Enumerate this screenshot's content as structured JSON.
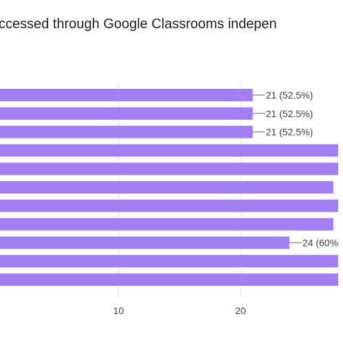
{
  "chart_data": {
    "type": "bar",
    "orientation": "horizontal",
    "title": "ccessed through Google Classrooms indepen",
    "xlabel": "",
    "ylabel": "",
    "xlim": [
      0,
      28
    ],
    "x_ticks": [
      10,
      20
    ],
    "grid": true,
    "bar_color": "#a17ff0",
    "values": [
      21,
      21,
      21,
      28,
      28,
      27.6,
      28,
      27.6,
      24,
      28,
      28
    ],
    "labels": [
      "21 (52.5%)",
      "21 (52.5%)",
      "21 (52.5%)",
      "",
      "",
      "",
      "",
      "",
      "24 (60%",
      "",
      ""
    ]
  }
}
